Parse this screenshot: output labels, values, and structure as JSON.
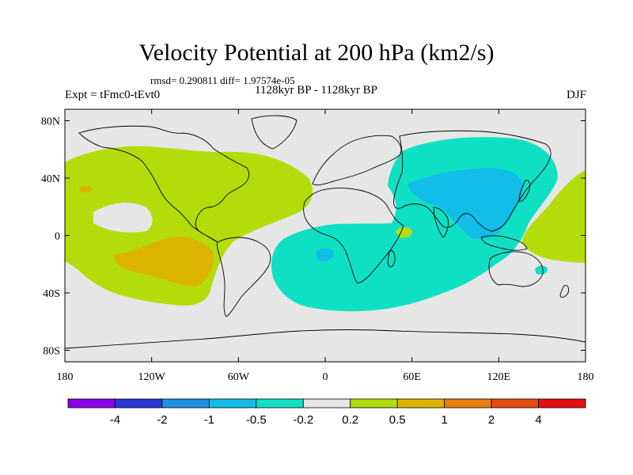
{
  "title": "Velocity Potential at 200 hPa (km2/s)",
  "stats_line": "rmsd= 0.290811 diff= 1.97574e-05",
  "left_label": "Expt = tFmc0-tEvt0",
  "center_label": "1128kyr BP - 1128kyr BP",
  "right_label": "DJF",
  "lat_ticks": [
    "80N",
    "40N",
    "0",
    "40S",
    "80S"
  ],
  "lon_ticks": [
    "180",
    "120W",
    "60W",
    "0",
    "60E",
    "120E",
    "180"
  ],
  "colorbar": {
    "labels": [
      "-4",
      "-2",
      "-1",
      "-0.5",
      "-0.2",
      "0.2",
      "0.5",
      "1",
      "2",
      "4"
    ],
    "colors": [
      "#8a00e6",
      "#2b36d6",
      "#1e8fe0",
      "#12bde8",
      "#0fe0c4",
      "#e6e6e6",
      "#b4dc0a",
      "#dcb400",
      "#e67d0c",
      "#e64b0f",
      "#e60f0f"
    ]
  },
  "colors": {
    "background": "#e6e6e6",
    "coast": "#000000"
  }
}
